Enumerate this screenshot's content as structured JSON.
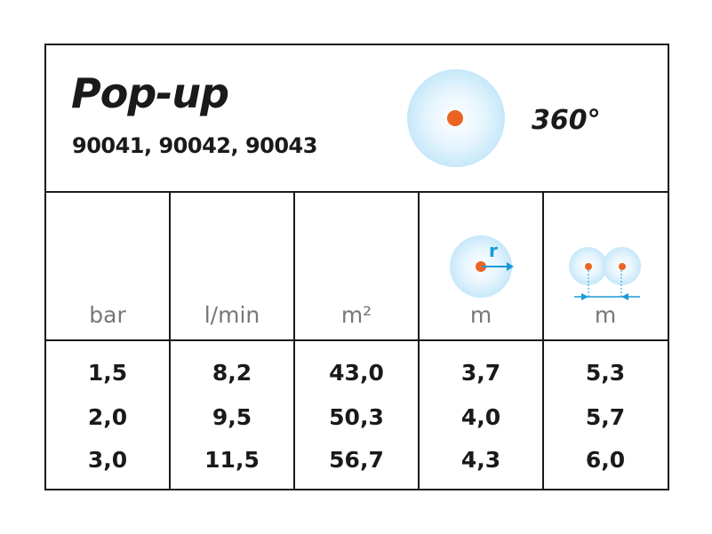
{
  "header": {
    "title": "Pop-up",
    "codes": "90041, 90042, 90043",
    "angle": "360°"
  },
  "units": [
    "bar",
    "l/min",
    "m²",
    "m",
    "m"
  ],
  "radius_label": "r",
  "rows": [
    [
      "1,5",
      "8,2",
      "43,0",
      "3,7",
      "5,3"
    ],
    [
      "2,0",
      "9,5",
      "50,3",
      "4,0",
      "5,7"
    ],
    [
      "3,0",
      "11,5",
      "56,7",
      "4,3",
      "6,0"
    ]
  ],
  "colors": {
    "spray": "#a8dbf6",
    "nozzle": "#ec6424",
    "arrow": "#1b9ad6"
  }
}
